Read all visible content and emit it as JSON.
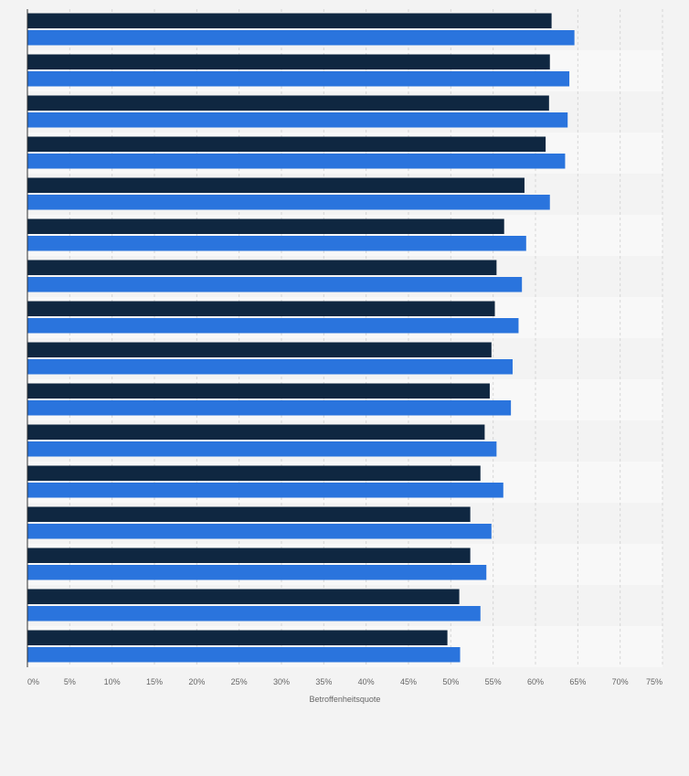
{
  "chart_data": {
    "type": "bar",
    "orientation": "horizontal",
    "title": "",
    "xlabel": "Betroffenheitsquote",
    "ylabel": "",
    "xlim": [
      0,
      75
    ],
    "x_ticks": [
      0,
      5,
      10,
      15,
      20,
      25,
      30,
      35,
      40,
      45,
      50,
      55,
      60,
      65,
      70,
      75
    ],
    "x_tick_labels": [
      "0%",
      "5%",
      "10%",
      "15%",
      "20%",
      "25%",
      "30%",
      "35%",
      "40%",
      "45%",
      "50%",
      "55%",
      "60%",
      "65%",
      "70%",
      "75%"
    ],
    "grid": true,
    "legend": "none",
    "categories": [
      "",
      "",
      "",
      "",
      "",
      "",
      "",
      "",
      "",
      "",
      "",
      "",
      "",
      "",
      "",
      ""
    ],
    "series": [
      {
        "color": "#0f2741",
        "values": [
          61.9,
          61.7,
          61.6,
          61.2,
          58.7,
          56.3,
          55.4,
          55.2,
          54.8,
          54.6,
          54.0,
          53.5,
          52.3,
          52.3,
          51.0,
          49.6
        ]
      },
      {
        "color": "#2a74dd",
        "values": [
          64.6,
          64.0,
          63.8,
          63.5,
          61.7,
          58.9,
          58.4,
          58.0,
          57.3,
          57.1,
          55.4,
          56.2,
          54.8,
          54.2,
          53.5,
          51.1
        ]
      }
    ]
  }
}
